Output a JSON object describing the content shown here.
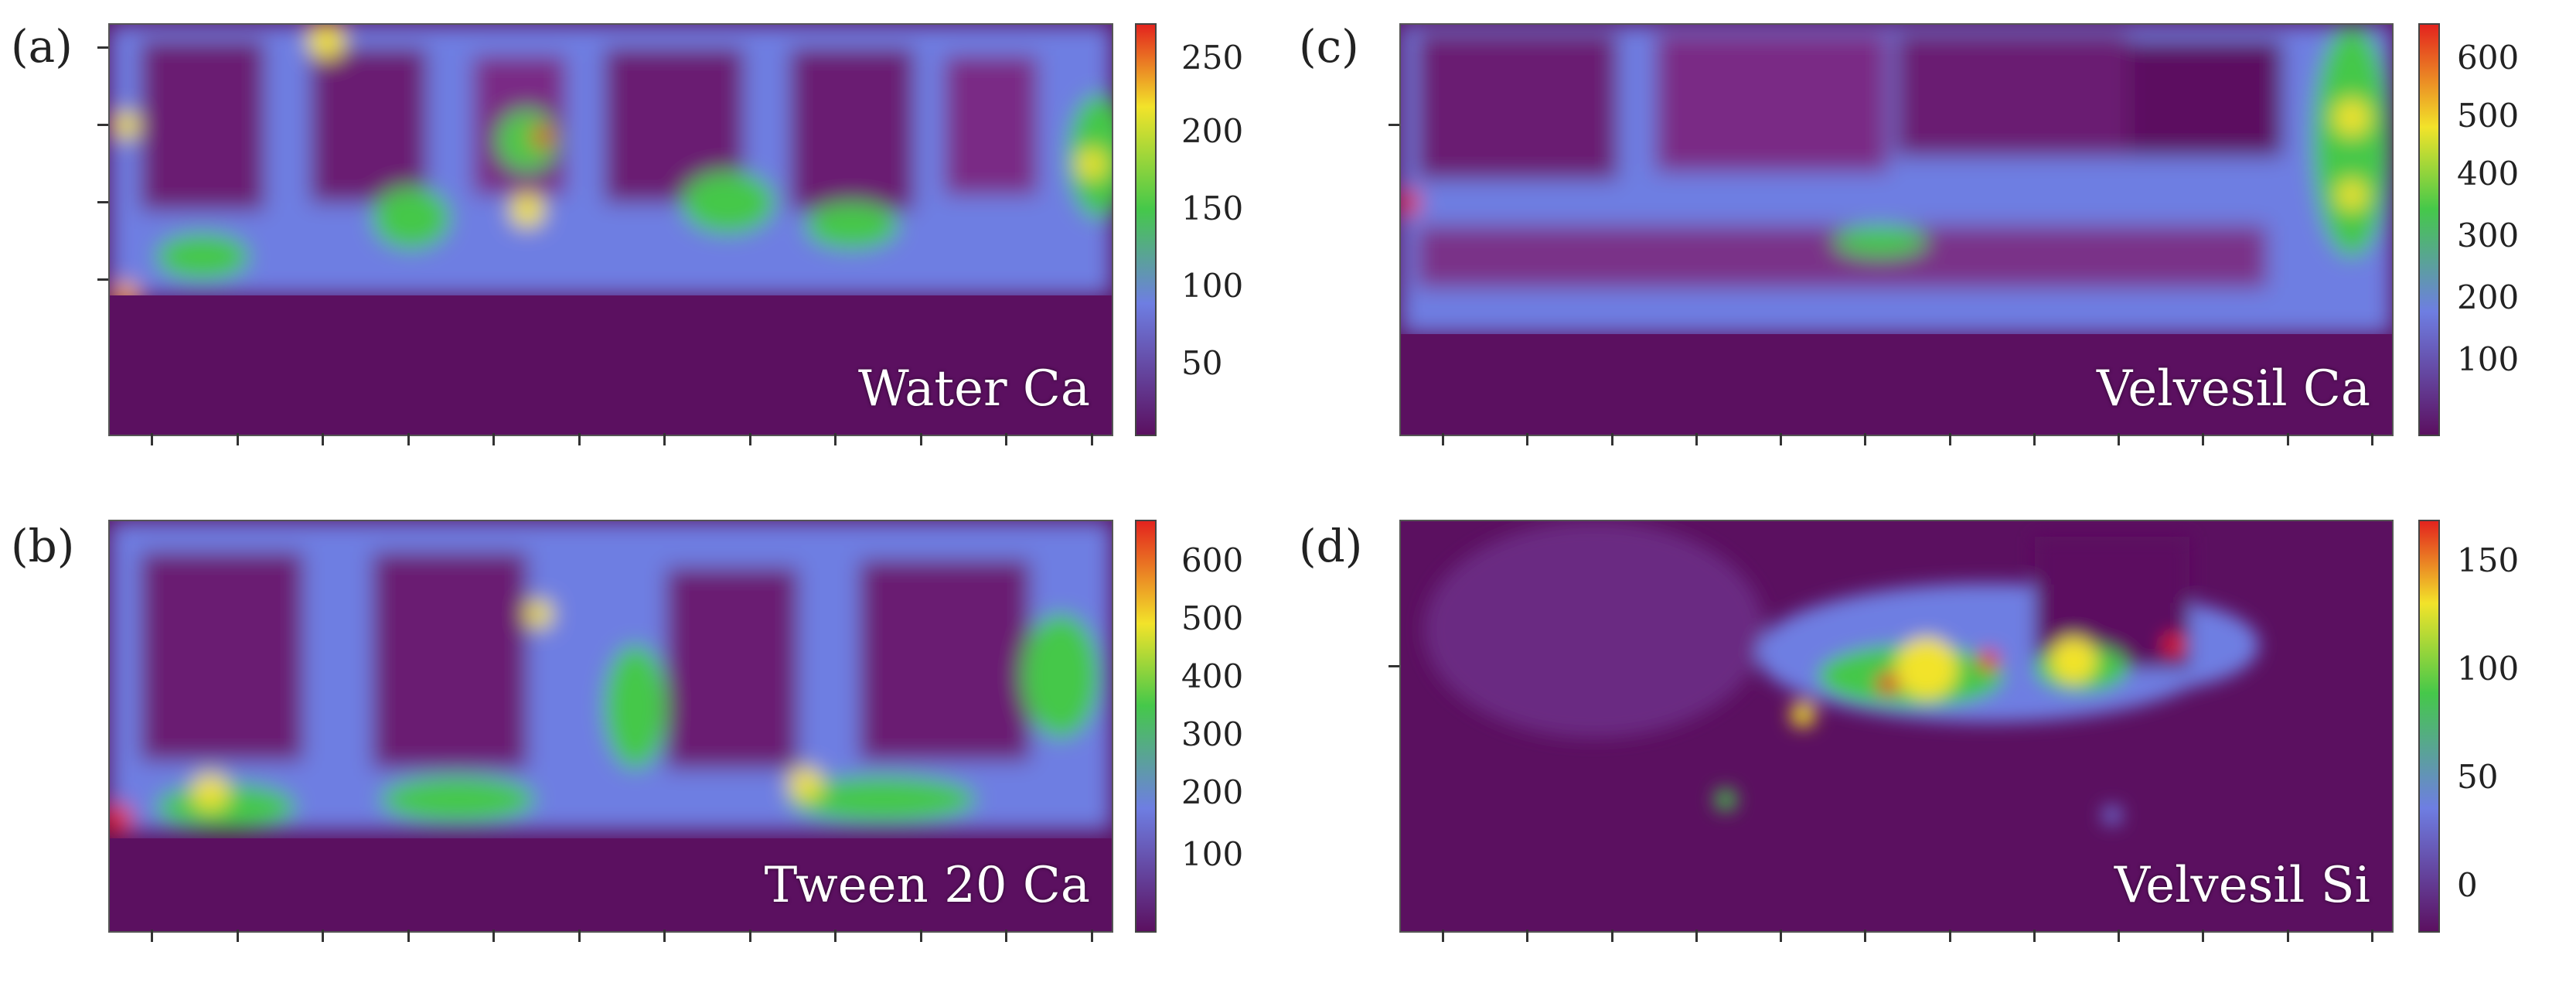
{
  "figure": {
    "colors": {
      "dark": "#5a0f5c",
      "mid": "#6f7fe0",
      "green": "#45c84a",
      "yellow": "#f2e32a",
      "red": "#e3231e"
    },
    "panels": [
      {
        "id": "a",
        "label": "(a)",
        "caption": "Water Ca",
        "colorbar_ticks": [
          "250",
          "200",
          "150",
          "100",
          "50"
        ]
      },
      {
        "id": "b",
        "label": "(b)",
        "caption": "Tween 20 Ca",
        "colorbar_ticks": [
          "600",
          "500",
          "400",
          "300",
          "200",
          "100"
        ]
      },
      {
        "id": "c",
        "label": "(c)",
        "caption": "Velvesil Ca",
        "colorbar_ticks": [
          "600",
          "500",
          "400",
          "300",
          "200",
          "100"
        ]
      },
      {
        "id": "d",
        "label": "(d)",
        "caption": "Velvesil Si",
        "colorbar_ticks": [
          "150",
          "100",
          "50",
          "0"
        ]
      }
    ]
  }
}
